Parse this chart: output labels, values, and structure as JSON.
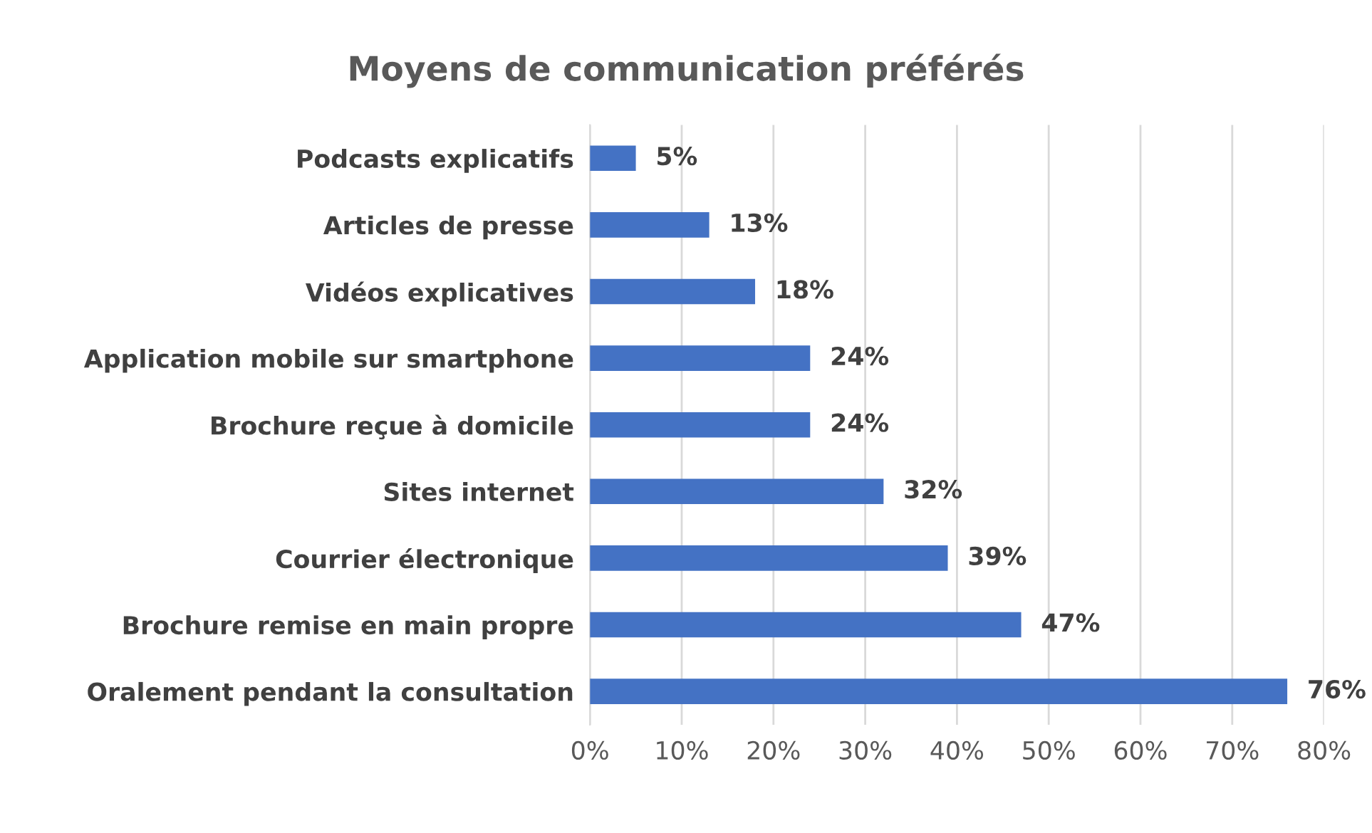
{
  "chart_data": {
    "type": "bar",
    "orientation": "horizontal",
    "title": "Moyens de communication préférés",
    "categories": [
      "Podcasts explicatifs",
      "Articles de presse",
      "Vidéos explicatives",
      "Application mobile sur smartphone",
      "Brochure reçue à domicile",
      "Sites internet",
      "Courrier électronique",
      "Brochure remise en main propre",
      "Oralement pendant la consultation"
    ],
    "values": [
      5,
      13,
      18,
      24,
      24,
      32,
      39,
      47,
      76
    ],
    "value_labels": [
      "5%",
      "13%",
      "18%",
      "24%",
      "24%",
      "32%",
      "39%",
      "47%",
      "76%"
    ],
    "color": "#4472c4",
    "xlim": [
      0,
      80
    ],
    "xticks": [
      {
        "value": 0,
        "label": "0%"
      },
      {
        "value": 10,
        "label": "10%"
      },
      {
        "value": 20,
        "label": "20%"
      },
      {
        "value": 30,
        "label": "30%"
      },
      {
        "value": 40,
        "label": "40%"
      },
      {
        "value": 50,
        "label": "50%"
      },
      {
        "value": 60,
        "label": "60%"
      },
      {
        "value": 70,
        "label": "70%"
      },
      {
        "value": 80,
        "label": "80%"
      }
    ],
    "grid": "x",
    "legend": false
  }
}
